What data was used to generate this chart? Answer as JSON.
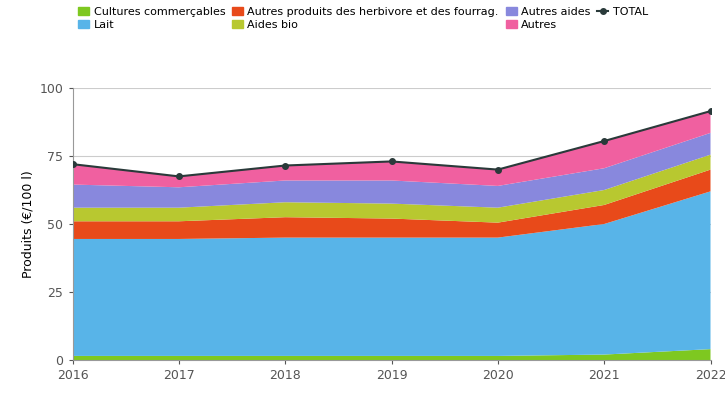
{
  "years": [
    2016,
    2017,
    2018,
    2019,
    2020,
    2021,
    2022
  ],
  "cultures_commercables": [
    1.5,
    1.5,
    1.5,
    1.5,
    1.5,
    2.0,
    4.0
  ],
  "lait": [
    43.0,
    43.0,
    43.5,
    43.5,
    43.5,
    48.0,
    58.0
  ],
  "autres_produits_herbivore": [
    6.5,
    6.5,
    7.5,
    7.0,
    5.5,
    7.0,
    8.0
  ],
  "aides_bio": [
    5.0,
    5.0,
    5.5,
    5.5,
    5.5,
    5.5,
    5.5
  ],
  "autres_aides": [
    8.5,
    7.5,
    8.0,
    8.5,
    8.0,
    8.0,
    8.0
  ],
  "autres": [
    7.5,
    4.0,
    5.5,
    7.0,
    6.0,
    10.0,
    8.0
  ],
  "total": [
    72.0,
    67.5,
    71.5,
    73.0,
    70.0,
    80.5,
    91.5
  ],
  "colors": {
    "cultures_commercables": "#7ec820",
    "lait": "#58b4e8",
    "autres_produits_herbivore": "#e84a1a",
    "aides_bio": "#b8c830",
    "autres_aides": "#8888dd",
    "autres": "#f060a0",
    "total": "#2a3a3a"
  },
  "legend_labels": {
    "cultures_commercables": "Cultures commerçables",
    "lait": "Lait",
    "autres_produits_herbivore": "Autres produits des herbivore et des fourrag.",
    "aides_bio": "Aides bio",
    "autres_aides": "Autres aides",
    "autres": "Autres",
    "total": "TOTAL"
  },
  "ylabel": "Produits (€/100 l)",
  "ylim": [
    0,
    100
  ],
  "yticks": [
    0,
    25,
    50,
    75,
    100
  ],
  "background_color": "#ffffff",
  "grid_color": "#cccccc"
}
